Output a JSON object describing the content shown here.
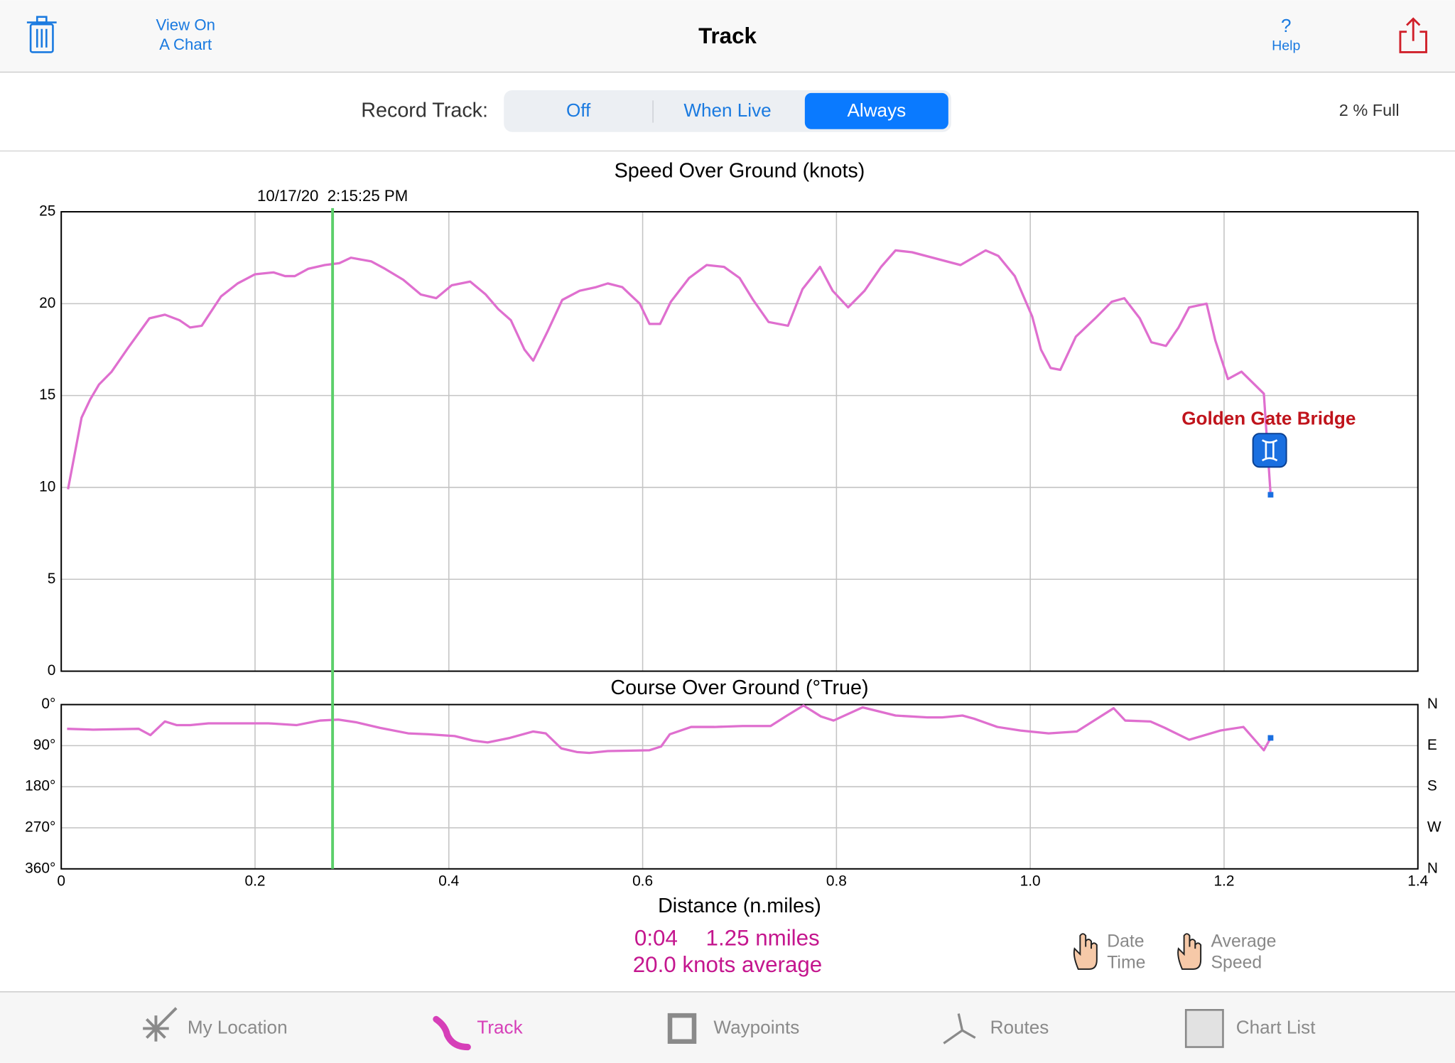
{
  "nav": {
    "left_button": [
      "View On",
      "A Chart"
    ],
    "title": "Track",
    "help": [
      "?",
      "Help"
    ]
  },
  "record": {
    "label": "Record Track:",
    "options": [
      "Off",
      "When Live",
      "Always"
    ],
    "selected": 2,
    "fill_status": "2 % Full"
  },
  "chart_data": [
    {
      "type": "line",
      "title": "Speed Over Ground (knots)",
      "color": "#df6fcf",
      "xlim": [
        0,
        1.4
      ],
      "ylim": [
        0,
        25
      ],
      "yticks": [
        0,
        5,
        10,
        15,
        20,
        25
      ],
      "grid": true,
      "x": [
        0.007,
        0.021,
        0.03,
        0.039,
        0.052,
        0.069,
        0.091,
        0.107,
        0.122,
        0.133,
        0.145,
        0.165,
        0.182,
        0.2,
        0.219,
        0.231,
        0.241,
        0.255,
        0.272,
        0.287,
        0.299,
        0.32,
        0.334,
        0.353,
        0.371,
        0.387,
        0.403,
        0.422,
        0.438,
        0.451,
        0.464,
        0.478,
        0.487,
        0.502,
        0.517,
        0.535,
        0.552,
        0.564,
        0.579,
        0.597,
        0.607,
        0.618,
        0.629,
        0.648,
        0.666,
        0.684,
        0.7,
        0.714,
        0.73,
        0.75,
        0.765,
        0.783,
        0.796,
        0.812,
        0.829,
        0.846,
        0.861,
        0.878,
        0.928,
        0.954,
        0.967,
        0.984,
        1.002,
        1.011,
        1.021,
        1.031,
        1.047,
        1.067,
        1.084,
        1.097,
        1.113,
        1.125,
        1.14,
        1.153,
        1.164,
        1.182,
        1.191,
        1.204,
        1.218,
        1.241,
        1.248
      ],
      "values": [
        9.9,
        13.8,
        14.8,
        15.6,
        16.3,
        17.6,
        19.2,
        19.4,
        19.1,
        18.7,
        18.8,
        20.4,
        21.1,
        21.6,
        21.7,
        21.5,
        21.5,
        21.9,
        22.1,
        22.2,
        22.5,
        22.3,
        21.9,
        21.3,
        20.5,
        20.3,
        21.0,
        21.2,
        20.5,
        19.7,
        19.1,
        17.5,
        16.9,
        18.5,
        20.2,
        20.7,
        20.9,
        21.1,
        20.9,
        20.0,
        18.9,
        18.9,
        20.1,
        21.4,
        22.1,
        22.0,
        21.4,
        20.2,
        19.0,
        18.8,
        20.8,
        22.0,
        20.7,
        19.8,
        20.7,
        22.0,
        22.9,
        22.8,
        22.1,
        22.9,
        22.6,
        21.5,
        19.3,
        17.5,
        16.5,
        16.4,
        18.2,
        19.2,
        20.1,
        20.3,
        19.2,
        17.9,
        17.7,
        18.7,
        19.8,
        20.0,
        18.0,
        15.9,
        16.3,
        15.1,
        9.6
      ],
      "end_marker_color": "#1a6fe0",
      "cursor": {
        "x": 0.28,
        "label": "10/17/20  2:15:25 PM",
        "color": "#5ccf6a"
      },
      "annotation": {
        "text": "Golden Gate Bridge",
        "x": 1.248,
        "color": "#c0141c"
      }
    },
    {
      "type": "line",
      "title": "Course Over Ground (°True)",
      "xlabel": "Distance (n.miles)",
      "color": "#df6fcf",
      "xlim": [
        0,
        1.4
      ],
      "xticks": [
        0,
        0.2,
        0.4,
        0.6,
        0.8,
        {
          "value": 1,
          "label": "1.0"
        },
        1.2,
        1.4
      ],
      "ylim": [
        0,
        360
      ],
      "invert_y": true,
      "grid": true,
      "yticks": [
        {
          "value": 0,
          "label": "0°"
        },
        {
          "value": 90,
          "label": "90°"
        },
        {
          "value": 180,
          "label": "180°"
        },
        {
          "value": 270,
          "label": "270°"
        },
        {
          "value": 360,
          "label": "360°"
        }
      ],
      "y2ticks": [
        {
          "value": 0,
          "label": "N"
        },
        {
          "value": 90,
          "label": "E"
        },
        {
          "value": 180,
          "label": "S"
        },
        {
          "value": 270,
          "label": "W"
        },
        {
          "value": 360,
          "label": "N"
        }
      ],
      "x": [
        0.006,
        0.033,
        0.08,
        0.092,
        0.107,
        0.119,
        0.133,
        0.152,
        0.214,
        0.243,
        0.267,
        0.286,
        0.305,
        0.329,
        0.358,
        0.379,
        0.406,
        0.425,
        0.44,
        0.463,
        0.487,
        0.5,
        0.516,
        0.532,
        0.545,
        0.564,
        0.607,
        0.619,
        0.628,
        0.65,
        0.674,
        0.703,
        0.732,
        0.749,
        0.766,
        0.784,
        0.797,
        0.827,
        0.861,
        0.894,
        0.909,
        0.93,
        0.942,
        0.966,
        0.99,
        1.019,
        1.048,
        1.086,
        1.098,
        1.124,
        1.139,
        1.164,
        1.196,
        1.22,
        1.241,
        1.248
      ],
      "values": [
        53,
        55,
        53,
        67,
        37,
        45,
        45,
        41,
        41,
        45,
        35,
        33,
        39,
        51,
        63,
        65,
        69,
        79,
        83,
        73,
        59,
        63,
        96,
        104,
        106,
        102,
        100,
        92,
        65,
        49,
        49,
        47,
        47,
        24,
        2,
        26,
        35,
        6,
        24,
        28,
        28,
        24,
        31,
        49,
        57,
        63,
        59,
        8,
        35,
        37,
        51,
        77,
        57,
        49,
        100,
        73
      ],
      "end_marker_color": "#1a6fe0"
    }
  ],
  "summary": {
    "time": "0:04",
    "distance": "1.25 nmiles",
    "average": "20.0 knots average"
  },
  "toggles": [
    [
      "Date",
      "Time"
    ],
    [
      "Average",
      "Speed"
    ]
  ],
  "tabs": {
    "items": [
      "My Location",
      "Track",
      "Waypoints",
      "Routes",
      "Chart List"
    ],
    "selected": 1
  }
}
